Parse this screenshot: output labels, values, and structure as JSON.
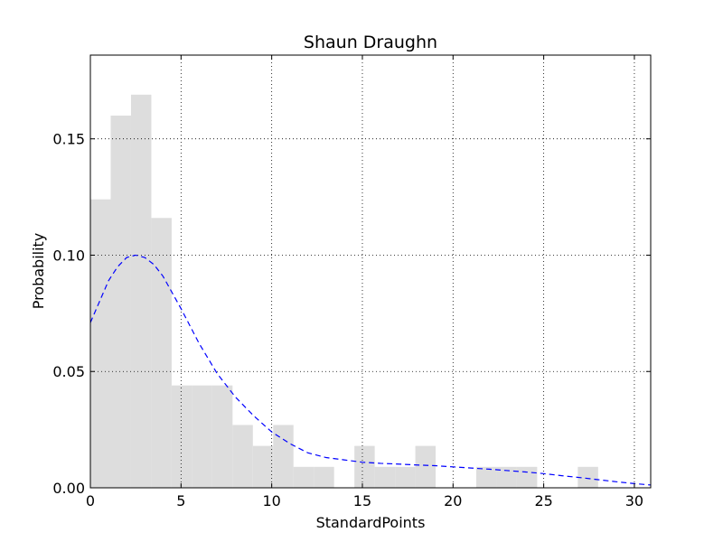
{
  "chart_data": {
    "type": "bar",
    "title": "Shaun Draughn",
    "xlabel": "StandardPoints",
    "ylabel": "Probability",
    "xlim": [
      0,
      30.9
    ],
    "ylim": [
      0,
      0.186
    ],
    "grid": true,
    "x_ticks": [
      0,
      5,
      10,
      15,
      20,
      25,
      30
    ],
    "y_ticks": [
      0.0,
      0.05,
      0.1,
      0.15
    ],
    "y_tick_labels": [
      "0.00",
      "0.05",
      "0.10",
      "0.15"
    ],
    "bar_color": "#dddddd",
    "curve_color": "#0000ff",
    "histogram": {
      "bin_width": 1.12,
      "bins": [
        {
          "x0": 0.0,
          "value": 0.124
        },
        {
          "x0": 1.12,
          "value": 0.16
        },
        {
          "x0": 2.24,
          "value": 0.169
        },
        {
          "x0": 3.36,
          "value": 0.116
        },
        {
          "x0": 4.48,
          "value": 0.044
        },
        {
          "x0": 5.6,
          "value": 0.044
        },
        {
          "x0": 6.72,
          "value": 0.044
        },
        {
          "x0": 7.84,
          "value": 0.027
        },
        {
          "x0": 8.96,
          "value": 0.018
        },
        {
          "x0": 10.08,
          "value": 0.027
        },
        {
          "x0": 11.2,
          "value": 0.009
        },
        {
          "x0": 12.32,
          "value": 0.009
        },
        {
          "x0": 14.56,
          "value": 0.018
        },
        {
          "x0": 15.68,
          "value": 0.009
        },
        {
          "x0": 16.8,
          "value": 0.009
        },
        {
          "x0": 17.92,
          "value": 0.018
        },
        {
          "x0": 21.28,
          "value": 0.009
        },
        {
          "x0": 22.4,
          "value": 0.009
        },
        {
          "x0": 23.52,
          "value": 0.009
        },
        {
          "x0": 26.88,
          "value": 0.009
        }
      ]
    },
    "density_curve": {
      "style": "dashed",
      "x": [
        0,
        0.5,
        1,
        1.5,
        2,
        2.5,
        3,
        3.5,
        4,
        5,
        6,
        7,
        8,
        9,
        10,
        11,
        12,
        13,
        14,
        15,
        16,
        17,
        18,
        19,
        20,
        21,
        22,
        23,
        24,
        25,
        26,
        27,
        28,
        29,
        30,
        31
      ],
      "y": [
        0.071,
        0.08,
        0.089,
        0.095,
        0.099,
        0.1,
        0.099,
        0.096,
        0.091,
        0.077,
        0.062,
        0.049,
        0.039,
        0.031,
        0.024,
        0.019,
        0.015,
        0.013,
        0.012,
        0.011,
        0.0105,
        0.0102,
        0.0098,
        0.0095,
        0.009,
        0.0085,
        0.008,
        0.0074,
        0.0068,
        0.0061,
        0.0052,
        0.0044,
        0.0035,
        0.0026,
        0.0018,
        0.0012
      ]
    }
  }
}
